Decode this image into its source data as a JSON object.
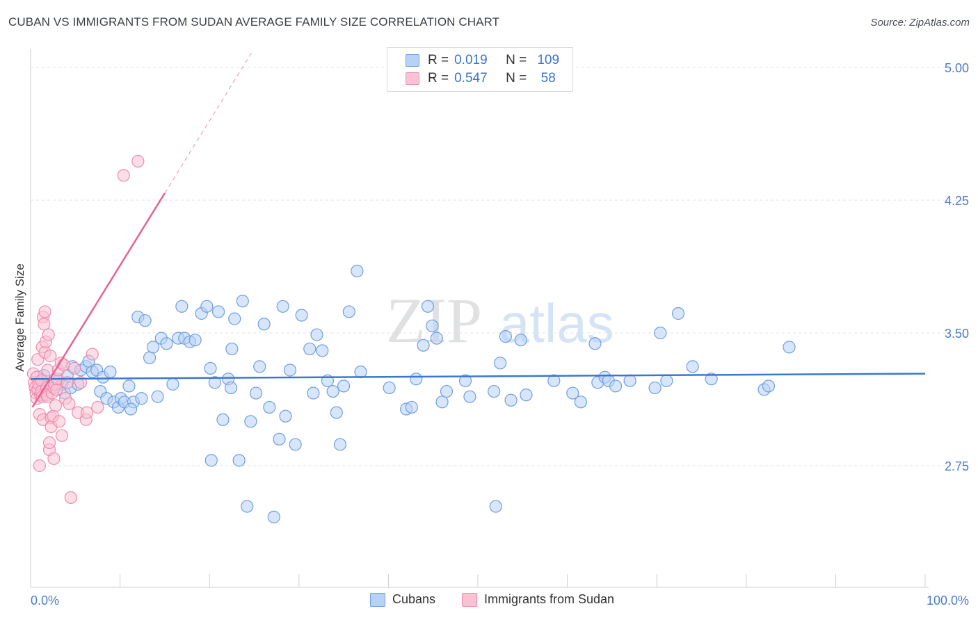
{
  "title": "CUBAN VS IMMIGRANTS FROM SUDAN AVERAGE FAMILY SIZE CORRELATION CHART",
  "source": "Source: ZipAtlas.com",
  "watermark": {
    "zip": "ZIP",
    "atlas": "atlas"
  },
  "legend": {
    "rows": [
      {
        "r_label": "R =",
        "r_value": "0.019",
        "n_label": "N =",
        "n_value": "109",
        "fill": "#b7d2f5",
        "stroke": "#7aa5e0"
      },
      {
        "r_label": "R =",
        "r_value": "0.547",
        "n_label": "N =",
        "n_value": "58",
        "fill": "#f9c3d4",
        "stroke": "#ee90b0"
      }
    ]
  },
  "bottom_legend": {
    "cubans": "Cubans",
    "sudan": "Immigrants from Sudan"
  },
  "chart_data": {
    "type": "scatter",
    "ylabel": "Average Family Size",
    "xlim": [
      0,
      100
    ],
    "ylim": [
      2.25,
      5.1
    ],
    "x_tick_labels": {
      "left": "0.0%",
      "right": "100.0%"
    },
    "y_ticks": [
      {
        "value": 5.0,
        "label": "5.00"
      },
      {
        "value": 4.25,
        "label": "4.25"
      },
      {
        "value": 3.5,
        "label": "3.50"
      },
      {
        "value": 2.75,
        "label": "2.75"
      }
    ],
    "grid": true,
    "colors": {
      "cubans_fill": "#b7d2f5",
      "cubans_stroke": "#6f9edf",
      "cubans_line": "#3a78d0",
      "sudan_fill": "#f9c3d4",
      "sudan_stroke": "#ee8cad",
      "sudan_line": "#e4648f"
    },
    "series": [
      {
        "name": "Cubans",
        "trend": {
          "x": [
            0,
            100
          ],
          "y": [
            3.24,
            3.27
          ]
        },
        "points": [
          [
            1.1,
            3.22
          ],
          [
            1.5,
            3.26
          ],
          [
            1.9,
            3.21
          ],
          [
            2.3,
            3.19
          ],
          [
            3.1,
            3.23
          ],
          [
            3.5,
            3.21
          ],
          [
            3.8,
            3.16
          ],
          [
            4.1,
            3.26
          ],
          [
            4.5,
            3.19
          ],
          [
            4.7,
            3.31
          ],
          [
            5.3,
            3.21
          ],
          [
            5.6,
            3.29
          ],
          [
            6.2,
            3.31
          ],
          [
            6.5,
            3.34
          ],
          [
            6.9,
            3.28
          ],
          [
            7.4,
            3.29
          ],
          [
            7.8,
            3.17
          ],
          [
            8.1,
            3.25
          ],
          [
            8.5,
            3.13
          ],
          [
            8.9,
            3.28
          ],
          [
            9.3,
            3.11
          ],
          [
            9.8,
            3.08
          ],
          [
            10.1,
            3.13
          ],
          [
            10.5,
            3.11
          ],
          [
            11.0,
            3.2
          ],
          [
            11.5,
            3.11
          ],
          [
            12.0,
            3.59
          ],
          [
            12.4,
            3.13
          ],
          [
            12.8,
            3.57
          ],
          [
            13.3,
            3.36
          ],
          [
            13.7,
            3.42
          ],
          [
            14.2,
            3.14
          ],
          [
            14.6,
            3.47
          ],
          [
            15.2,
            3.44
          ],
          [
            15.9,
            3.21
          ],
          [
            16.5,
            3.47
          ],
          [
            16.9,
            3.65
          ],
          [
            17.2,
            3.47
          ],
          [
            17.8,
            3.45
          ],
          [
            18.4,
            3.46
          ],
          [
            19.1,
            3.61
          ],
          [
            19.7,
            3.65
          ],
          [
            20.2,
            2.78
          ],
          [
            20.6,
            3.22
          ],
          [
            21.0,
            3.62
          ],
          [
            21.5,
            3.01
          ],
          [
            22.1,
            3.24
          ],
          [
            22.4,
            3.19
          ],
          [
            22.8,
            3.58
          ],
          [
            23.3,
            2.78
          ],
          [
            23.7,
            3.68
          ],
          [
            24.2,
            2.52
          ],
          [
            24.6,
            3.0
          ],
          [
            25.2,
            3.16
          ],
          [
            25.6,
            3.31
          ],
          [
            26.1,
            3.55
          ],
          [
            26.7,
            3.08
          ],
          [
            27.2,
            2.46
          ],
          [
            27.8,
            2.9
          ],
          [
            28.2,
            3.65
          ],
          [
            28.5,
            3.03
          ],
          [
            29.0,
            3.29
          ],
          [
            29.6,
            2.87
          ],
          [
            30.3,
            3.6
          ],
          [
            31.2,
            3.41
          ],
          [
            31.6,
            3.16
          ],
          [
            32.0,
            3.49
          ],
          [
            32.6,
            3.4
          ],
          [
            33.2,
            3.23
          ],
          [
            33.8,
            3.17
          ],
          [
            34.2,
            3.05
          ],
          [
            34.6,
            2.87
          ],
          [
            35.6,
            3.62
          ],
          [
            36.5,
            3.85
          ],
          [
            36.9,
            3.28
          ],
          [
            40.1,
            3.19
          ],
          [
            42.0,
            3.07
          ],
          [
            42.6,
            3.08
          ],
          [
            43.1,
            3.24
          ],
          [
            43.9,
            3.43
          ],
          [
            44.4,
            3.65
          ],
          [
            44.9,
            3.54
          ],
          [
            45.4,
            3.47
          ],
          [
            46.0,
            3.11
          ],
          [
            46.5,
            3.17
          ],
          [
            48.6,
            3.23
          ],
          [
            49.1,
            3.14
          ],
          [
            51.8,
            3.17
          ],
          [
            52.5,
            3.33
          ],
          [
            53.1,
            3.48
          ],
          [
            53.7,
            3.12
          ],
          [
            54.8,
            3.46
          ],
          [
            55.4,
            3.15
          ],
          [
            58.5,
            3.23
          ],
          [
            60.6,
            3.16
          ],
          [
            61.5,
            3.11
          ],
          [
            63.4,
            3.22
          ],
          [
            64.2,
            3.25
          ],
          [
            64.6,
            3.23
          ],
          [
            65.4,
            3.2
          ],
          [
            67.0,
            3.23
          ],
          [
            69.8,
            3.19
          ],
          [
            70.4,
            3.5
          ],
          [
            71.1,
            3.23
          ],
          [
            72.4,
            3.61
          ],
          [
            74.0,
            3.31
          ],
          [
            76.1,
            3.24
          ],
          [
            82.0,
            3.18
          ],
          [
            82.5,
            3.2
          ],
          [
            84.8,
            3.42
          ],
          [
            11.2,
            3.07
          ],
          [
            20.1,
            3.3
          ],
          [
            22.5,
            3.41
          ],
          [
            35.0,
            3.2
          ],
          [
            63.1,
            3.44
          ],
          [
            52.0,
            2.52
          ]
        ]
      },
      {
        "name": "Immigrants from Sudan",
        "trend": {
          "x": [
            0.2,
            15.0
          ],
          "y": [
            3.08,
            4.29
          ]
        },
        "points": [
          [
            0.3,
            3.27
          ],
          [
            0.4,
            3.22
          ],
          [
            0.5,
            3.19
          ],
          [
            0.6,
            3.16
          ],
          [
            0.7,
            3.13
          ],
          [
            0.7,
            3.25
          ],
          [
            0.8,
            3.35
          ],
          [
            0.8,
            3.18
          ],
          [
            0.9,
            3.21
          ],
          [
            1.0,
            2.75
          ],
          [
            1.0,
            3.04
          ],
          [
            1.1,
            3.15
          ],
          [
            1.2,
            3.23
          ],
          [
            1.2,
            3.17
          ],
          [
            1.3,
            3.42
          ],
          [
            1.3,
            3.14
          ],
          [
            1.4,
            3.59
          ],
          [
            1.4,
            3.01
          ],
          [
            1.5,
            3.55
          ],
          [
            1.6,
            3.62
          ],
          [
            1.6,
            3.39
          ],
          [
            1.7,
            3.45
          ],
          [
            1.8,
            3.19
          ],
          [
            1.8,
            3.15
          ],
          [
            1.9,
            3.29
          ],
          [
            1.9,
            3.14
          ],
          [
            2.0,
            3.49
          ],
          [
            2.1,
            2.84
          ],
          [
            2.1,
            2.88
          ],
          [
            2.2,
            3.37
          ],
          [
            2.3,
            3.02
          ],
          [
            2.3,
            2.97
          ],
          [
            2.4,
            3.16
          ],
          [
            2.5,
            3.03
          ],
          [
            2.6,
            2.79
          ],
          [
            2.6,
            3.19
          ],
          [
            2.7,
            3.21
          ],
          [
            2.8,
            3.09
          ],
          [
            2.9,
            3.18
          ],
          [
            3.0,
            3.24
          ],
          [
            3.1,
            3.29
          ],
          [
            3.2,
            3.0
          ],
          [
            3.4,
            3.33
          ],
          [
            3.5,
            2.92
          ],
          [
            3.7,
            3.32
          ],
          [
            3.9,
            3.13
          ],
          [
            4.1,
            3.22
          ],
          [
            4.3,
            3.1
          ],
          [
            4.5,
            2.57
          ],
          [
            4.9,
            3.3
          ],
          [
            5.3,
            3.05
          ],
          [
            5.6,
            3.22
          ],
          [
            6.2,
            3.01
          ],
          [
            6.3,
            3.05
          ],
          [
            6.9,
            3.38
          ],
          [
            7.5,
            3.08
          ],
          [
            10.4,
            4.39
          ],
          [
            12.0,
            4.47
          ]
        ]
      }
    ]
  }
}
